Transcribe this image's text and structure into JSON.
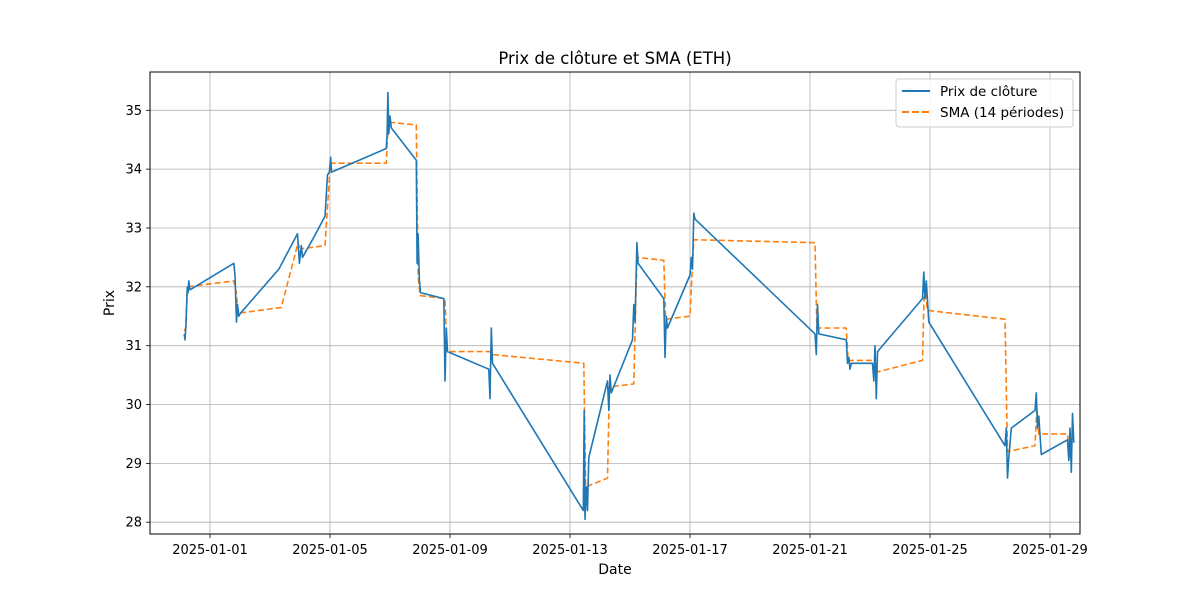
{
  "chart_data": {
    "type": "line",
    "title": "Prix de clôture et SMA (ETH)",
    "xlabel": "Date",
    "ylabel": "Prix",
    "xlim": [
      "2024-12-30T00:00",
      "2025-01-30T00:00"
    ],
    "ylim": [
      27.8,
      35.65
    ],
    "x_ticks": [
      "2025-01-01",
      "2025-01-05",
      "2025-01-09",
      "2025-01-13",
      "2025-01-17",
      "2025-01-21",
      "2025-01-25",
      "2025-01-29"
    ],
    "y_ticks": [
      28,
      29,
      30,
      31,
      32,
      33,
      34,
      35
    ],
    "grid": true,
    "legend_position": "top-right",
    "series": [
      {
        "name": "Prix de clôture",
        "color": "#1f77b4",
        "style": "solid",
        "points": [
          [
            "2024-12-31T03:20",
            31.2
          ],
          [
            "2024-12-31T04:00",
            31.1
          ],
          [
            "2024-12-31T04:40",
            31.3
          ],
          [
            "2024-12-31T05:50",
            32.0
          ],
          [
            "2024-12-31T06:30",
            31.9
          ],
          [
            "2024-12-31T07:00",
            32.1
          ],
          [
            "2024-12-31T08:00",
            31.95
          ],
          [
            "2025-01-01T19:00",
            32.4
          ],
          [
            "2025-01-01T20:00",
            32.2
          ],
          [
            "2025-01-01T21:10",
            31.4
          ],
          [
            "2025-01-01T22:00",
            31.7
          ],
          [
            "2025-01-01T23:00",
            31.5
          ],
          [
            "2025-01-02T00:20",
            31.55
          ],
          [
            "2025-01-03T07:00",
            32.3
          ],
          [
            "2025-01-03T22:00",
            32.9
          ],
          [
            "2025-01-03T23:30",
            32.4
          ],
          [
            "2025-01-04T01:00",
            32.7
          ],
          [
            "2025-01-04T02:00",
            32.5
          ],
          [
            "2025-01-04T10:00",
            32.8
          ],
          [
            "2025-01-04T20:00",
            33.2
          ],
          [
            "2025-01-04T22:00",
            33.9
          ],
          [
            "2025-01-04T23:30",
            33.95
          ],
          [
            "2025-01-05T00:30",
            34.2
          ],
          [
            "2025-01-05T01:10",
            33.95
          ],
          [
            "2025-01-06T21:00",
            34.35
          ],
          [
            "2025-01-06T21:40",
            34.6
          ],
          [
            "2025-01-06T22:20",
            35.3
          ],
          [
            "2025-01-06T23:00",
            34.6
          ],
          [
            "2025-01-07T00:00",
            34.9
          ],
          [
            "2025-01-07T01:00",
            34.7
          ],
          [
            "2025-01-07T21:00",
            34.15
          ],
          [
            "2025-01-07T21:40",
            32.4
          ],
          [
            "2025-01-07T22:30",
            32.9
          ],
          [
            "2025-01-07T23:30",
            32.1
          ],
          [
            "2025-01-08T00:30",
            31.9
          ],
          [
            "2025-01-08T19:00",
            31.8
          ],
          [
            "2025-01-08T20:00",
            30.4
          ],
          [
            "2025-01-08T21:00",
            31.3
          ],
          [
            "2025-01-08T22:00",
            30.9
          ],
          [
            "2025-01-10T07:00",
            30.6
          ],
          [
            "2025-01-10T08:00",
            30.1
          ],
          [
            "2025-01-10T09:00",
            31.3
          ],
          [
            "2025-01-10T10:00",
            30.7
          ],
          [
            "2025-01-13T10:40",
            28.2
          ],
          [
            "2025-01-13T11:20",
            29.9
          ],
          [
            "2025-01-13T12:00",
            28.05
          ],
          [
            "2025-01-13T13:00",
            28.6
          ],
          [
            "2025-01-13T14:00",
            28.2
          ],
          [
            "2025-01-13T15:00",
            29.1
          ],
          [
            "2025-01-14T06:00",
            30.4
          ],
          [
            "2025-01-14T07:00",
            29.9
          ],
          [
            "2025-01-14T08:00",
            30.5
          ],
          [
            "2025-01-14T09:00",
            30.2
          ],
          [
            "2025-01-15T02:00",
            31.1
          ],
          [
            "2025-01-15T03:00",
            31.7
          ],
          [
            "2025-01-15T04:00",
            31.4
          ],
          [
            "2025-01-15T05:30",
            32.75
          ],
          [
            "2025-01-15T06:30",
            32.4
          ],
          [
            "2025-01-16T03:00",
            31.8
          ],
          [
            "2025-01-16T04:00",
            30.8
          ],
          [
            "2025-01-16T05:00",
            31.5
          ],
          [
            "2025-01-16T06:00",
            31.3
          ],
          [
            "2025-01-17T00:00",
            32.2
          ],
          [
            "2025-01-17T01:00",
            32.5
          ],
          [
            "2025-01-17T02:00",
            32.3
          ],
          [
            "2025-01-17T03:00",
            33.25
          ],
          [
            "2025-01-17T04:00",
            33.15
          ],
          [
            "2025-01-21T04:00",
            31.2
          ],
          [
            "2025-01-21T05:00",
            30.85
          ],
          [
            "2025-01-21T06:00",
            31.7
          ],
          [
            "2025-01-21T07:00",
            31.2
          ],
          [
            "2025-01-22T05:00",
            31.1
          ],
          [
            "2025-01-22T06:00",
            30.7
          ],
          [
            "2025-01-22T07:00",
            30.8
          ],
          [
            "2025-01-22T08:00",
            30.6
          ],
          [
            "2025-01-22T09:00",
            30.7
          ],
          [
            "2025-01-23T02:00",
            30.7
          ],
          [
            "2025-01-23T03:00",
            30.4
          ],
          [
            "2025-01-23T04:00",
            31.0
          ],
          [
            "2025-01-23T05:00",
            30.1
          ],
          [
            "2025-01-23T06:00",
            30.9
          ],
          [
            "2025-01-24T18:00",
            31.8
          ],
          [
            "2025-01-24T19:00",
            32.25
          ],
          [
            "2025-01-24T20:00",
            31.8
          ],
          [
            "2025-01-24T21:00",
            32.1
          ],
          [
            "2025-01-24T23:00",
            31.4
          ],
          [
            "2025-01-27T12:00",
            29.3
          ],
          [
            "2025-01-27T13:00",
            29.6
          ],
          [
            "2025-01-27T14:00",
            28.75
          ],
          [
            "2025-01-27T15:00",
            29.1
          ],
          [
            "2025-01-27T17:00",
            29.6
          ],
          [
            "2025-01-28T12:00",
            29.9
          ],
          [
            "2025-01-28T13:00",
            30.2
          ],
          [
            "2025-01-28T14:00",
            29.6
          ],
          [
            "2025-01-28T15:00",
            29.8
          ],
          [
            "2025-01-28T17:00",
            29.15
          ],
          [
            "2025-01-29T14:00",
            29.4
          ],
          [
            "2025-01-29T15:00",
            29.05
          ],
          [
            "2025-01-29T16:00",
            29.6
          ],
          [
            "2025-01-29T17:00",
            28.85
          ],
          [
            "2025-01-29T18:00",
            29.85
          ],
          [
            "2025-01-29T19:00",
            29.35
          ]
        ]
      },
      {
        "name": "SMA (14 périodes)",
        "color": "#ff7f0e",
        "style": "dashed",
        "points": [
          [
            "2024-12-31T03:20",
            31.25
          ],
          [
            "2024-12-31T04:40",
            31.3
          ],
          [
            "2024-12-31T06:00",
            32.0
          ],
          [
            "2025-01-01T19:00",
            32.1
          ],
          [
            "2025-01-01T21:00",
            31.9
          ],
          [
            "2025-01-01T22:30",
            31.55
          ],
          [
            "2025-01-03T09:00",
            31.65
          ],
          [
            "2025-01-03T22:30",
            32.75
          ],
          [
            "2025-01-04T00:00",
            32.6
          ],
          [
            "2025-01-04T02:00",
            32.65
          ],
          [
            "2025-01-04T20:00",
            32.7
          ],
          [
            "2025-01-05T00:00",
            34.0
          ],
          [
            "2025-01-05T01:00",
            34.1
          ],
          [
            "2025-01-06T21:00",
            34.1
          ],
          [
            "2025-01-06T22:30",
            34.8
          ],
          [
            "2025-01-07T21:00",
            34.75
          ],
          [
            "2025-01-07T22:30",
            32.2
          ],
          [
            "2025-01-08T00:00",
            31.85
          ],
          [
            "2025-01-08T20:00",
            31.8
          ],
          [
            "2025-01-08T21:30",
            30.9
          ],
          [
            "2025-01-10T08:00",
            30.9
          ],
          [
            "2025-01-10T09:30",
            30.85
          ],
          [
            "2025-01-13T11:00",
            30.7
          ],
          [
            "2025-01-13T12:30",
            28.6
          ],
          [
            "2025-01-14T06:00",
            28.75
          ],
          [
            "2025-01-14T07:30",
            30.3
          ],
          [
            "2025-01-15T03:00",
            30.35
          ],
          [
            "2025-01-15T05:30",
            32.5
          ],
          [
            "2025-01-16T03:00",
            32.45
          ],
          [
            "2025-01-16T04:30",
            31.45
          ],
          [
            "2025-01-17T00:00",
            31.5
          ],
          [
            "2025-01-17T02:00",
            32.4
          ],
          [
            "2025-01-17T03:00",
            32.8
          ],
          [
            "2025-01-21T04:00",
            32.75
          ],
          [
            "2025-01-21T05:30",
            31.3
          ],
          [
            "2025-01-22T05:00",
            31.3
          ],
          [
            "2025-01-22T06:30",
            30.75
          ],
          [
            "2025-01-23T02:00",
            30.75
          ],
          [
            "2025-01-23T04:00",
            30.7
          ],
          [
            "2025-01-23T05:00",
            30.55
          ],
          [
            "2025-01-24T18:00",
            30.75
          ],
          [
            "2025-01-24T19:30",
            32.05
          ],
          [
            "2025-01-24T22:00",
            31.6
          ],
          [
            "2025-01-27T12:00",
            31.45
          ],
          [
            "2025-01-27T14:00",
            29.2
          ],
          [
            "2025-01-28T12:00",
            29.3
          ],
          [
            "2025-01-28T13:30",
            29.95
          ],
          [
            "2025-01-28T15:00",
            29.5
          ],
          [
            "2025-01-29T14:00",
            29.5
          ],
          [
            "2025-01-29T15:30",
            29.1
          ],
          [
            "2025-01-29T17:30",
            29.5
          ],
          [
            "2025-01-29T19:00",
            29.45
          ]
        ]
      }
    ]
  }
}
